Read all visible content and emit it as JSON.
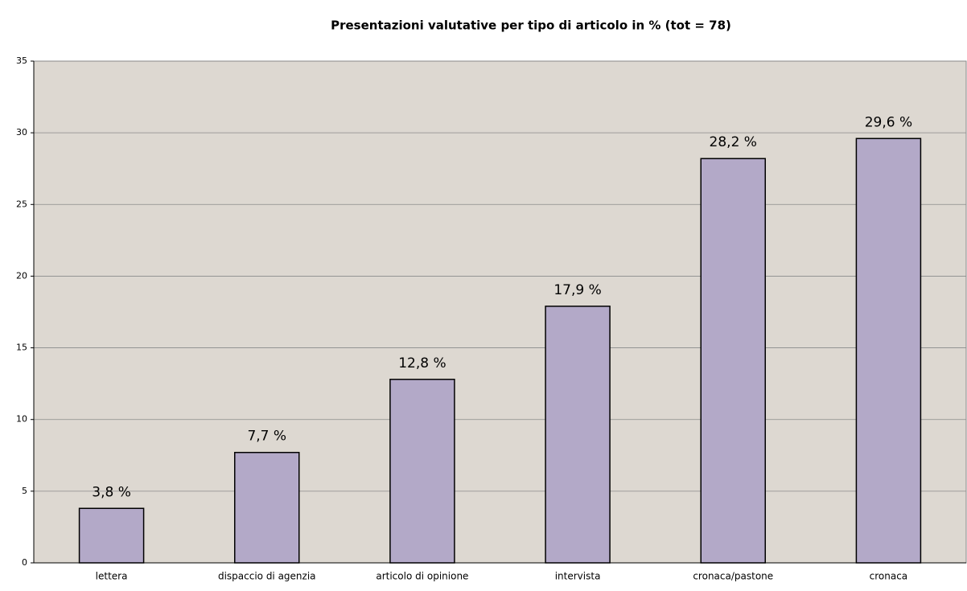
{
  "chart_data": {
    "type": "bar",
    "title": "Presentazioni valutative per tipo di articolo in % (tot = 78)",
    "categories": [
      "lettera",
      "dispaccio di agenzia",
      "articolo di opinione",
      "intervista",
      "cronaca/pastone",
      "cronaca"
    ],
    "values": [
      3.8,
      7.7,
      12.8,
      17.9,
      28.2,
      29.6
    ],
    "value_labels": [
      "3,8 %",
      "7,7 %",
      "12,8 %",
      "17,9 %",
      "28,2 %",
      "29,6 %"
    ],
    "color": "#b3a9c8",
    "ylim": [
      0,
      35
    ],
    "yticks": [
      0,
      5,
      10,
      15,
      20,
      25,
      30,
      35
    ],
    "grid": true
  }
}
